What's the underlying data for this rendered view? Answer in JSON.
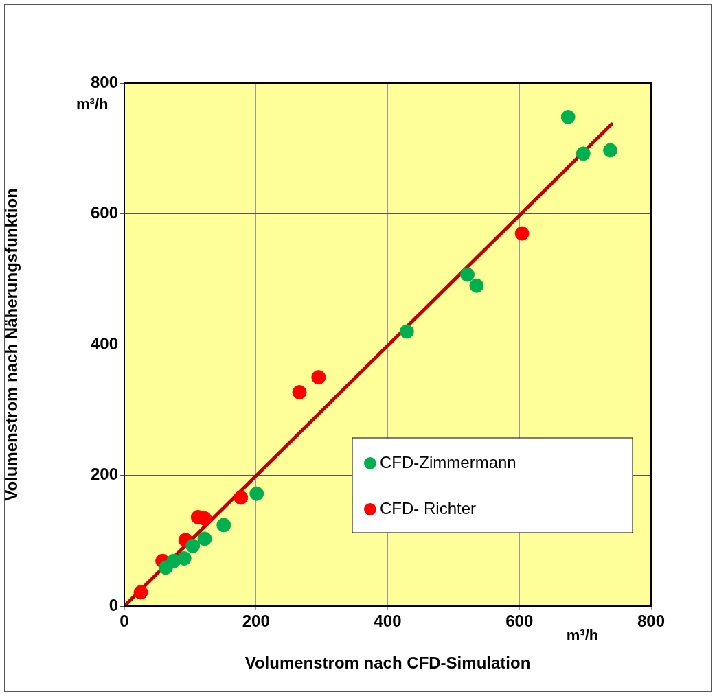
{
  "chart_data": {
    "type": "scatter",
    "xlabel": "Volumenstrom nach CFD-Simulation",
    "ylabel": "Volumenstrom nach Näherungsfunktion",
    "xlim": [
      0,
      800
    ],
    "xticks": [
      0,
      200,
      400,
      600,
      800
    ],
    "ylim": [
      0,
      800
    ],
    "yticks": [
      0,
      200,
      400,
      600,
      800
    ],
    "grid": true,
    "legend": "bottom right",
    "annotations": [
      "m³/h",
      "m³/h"
    ],
    "series": [
      {
        "name": "CFD-Zimmermann",
        "color": "#00b050",
        "marker": "circle",
        "x": [
          63,
          75,
          91,
          104,
          122,
          151,
          201,
          429,
          521,
          535,
          674,
          697,
          738
        ],
        "values": [
          59,
          69,
          73,
          92,
          103,
          124,
          172,
          420,
          507,
          490,
          748,
          692,
          697
        ]
      },
      {
        "name": "CFD- Richter",
        "color": "#ff0000",
        "marker": "circle",
        "x": [
          25,
          58,
          93,
          112,
          122,
          177,
          266,
          295,
          604
        ],
        "values": [
          21,
          69,
          101,
          136,
          134,
          166,
          327,
          350,
          570
        ]
      },
      {
        "type": "line",
        "color": "#c00000",
        "marker": "none",
        "x": [
          0,
          740
        ],
        "values": [
          0,
          737
        ]
      }
    ]
  }
}
